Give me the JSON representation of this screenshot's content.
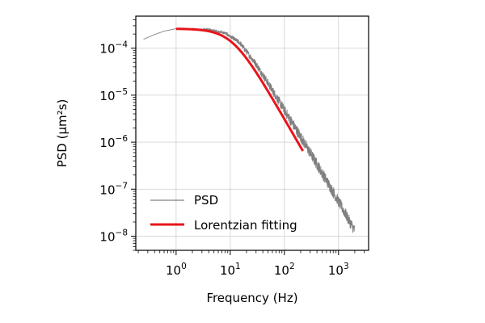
{
  "chart_data": {
    "type": "line",
    "title": "",
    "xlabel": "Frequency (Hz)",
    "ylabel": "PSD (μm²s)",
    "xscale": "log",
    "yscale": "log",
    "xlim": [
      0.18,
      3600
    ],
    "ylim": [
      5e-09,
      0.00048
    ],
    "grid": true,
    "legend_position": "lower-left",
    "x_ticks": [
      {
        "value": 1,
        "base": "10",
        "exp": "0"
      },
      {
        "value": 10,
        "base": "10",
        "exp": "1"
      },
      {
        "value": 100,
        "base": "10",
        "exp": "2"
      },
      {
        "value": 1000,
        "base": "10",
        "exp": "3"
      }
    ],
    "y_ticks": [
      {
        "value": 1e-08,
        "base": "10",
        "exp": "−8"
      },
      {
        "value": 1e-07,
        "base": "10",
        "exp": "−7"
      },
      {
        "value": 1e-06,
        "base": "10",
        "exp": "−6"
      },
      {
        "value": 1e-05,
        "base": "10",
        "exp": "−5"
      },
      {
        "value": 0.0001,
        "base": "10",
        "exp": "−4"
      }
    ],
    "series": [
      {
        "name": "PSD",
        "color": "#808080",
        "noise_decades": 0.12,
        "x": [
          0.25,
          0.4,
          0.6,
          1.0,
          2.0,
          4.0,
          8.0,
          15.0,
          30.0,
          50.0,
          100.0,
          200.0,
          500.0,
          1000.0,
          2000.0
        ],
        "y": [
          0.000155,
          0.000195,
          0.00023,
          0.00026,
          0.000255,
          0.00025,
          0.00021,
          0.00013,
          4.6e-05,
          1.8e-05,
          4.8e-06,
          1.3e-06,
          2.2e-07,
          5.5e-08,
          1.3e-08
        ]
      },
      {
        "name": "Lorentzian fitting",
        "color": "#e8141a",
        "model": "lorentzian",
        "D": 0.00026,
        "fc": 11,
        "x_range": [
          1.0,
          220.0
        ]
      }
    ]
  }
}
